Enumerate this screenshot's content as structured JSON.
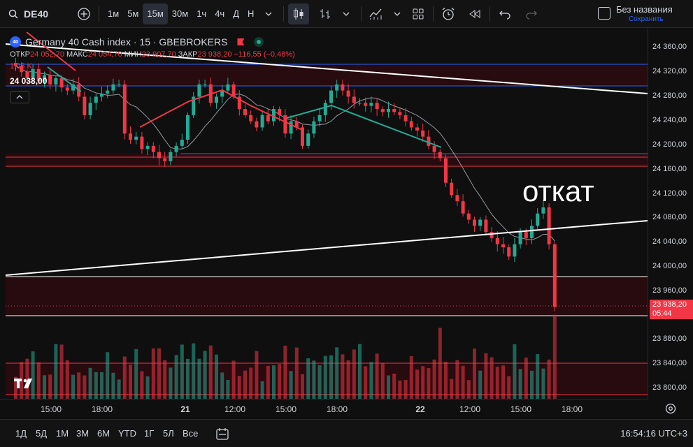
{
  "toolbar": {
    "symbol": "DE40",
    "intervals": [
      "1м",
      "5м",
      "15м",
      "30м",
      "1ч",
      "4ч",
      "Д",
      "Н"
    ],
    "active_interval": "15м",
    "chart_title": "Без названия",
    "save_label": "Сохранить"
  },
  "legend": {
    "instrument": "Germany 40 Cash index · 15 · GBEBROKERS",
    "badge": "40",
    "open_label": "ОТКР",
    "open": "24 052,70",
    "high_label": "МАКС",
    "high": "24 054,70",
    "low_label": "МИН",
    "low": "23 907,70",
    "close_label": "ЗАКР",
    "close": "23 938,20",
    "change": "−116,55 (−0,48%)",
    "volume": "1,05 K",
    "crosshair_price": "24 038,00"
  },
  "annotation": "откат",
  "price_axis": {
    "ticks": [
      "24 360,00",
      "24 320,00",
      "24 280,00",
      "24 240,00",
      "24 200,00",
      "24 160,00",
      "24 120,00",
      "24 080,00",
      "24 040,00",
      "24 000,00",
      "23 960,00",
      "23 920,00",
      "23 880,00",
      "23 840,00",
      "23 800,00"
    ],
    "last_price": "23 938,20",
    "countdown": "05:44"
  },
  "time_axis": {
    "ticks": [
      "15:00",
      "18:00",
      "21",
      "12:00",
      "15:00",
      "18:00",
      "22",
      "12:00",
      "15:00",
      "18:00"
    ]
  },
  "bottom": {
    "ranges": [
      "1Д",
      "5Д",
      "1М",
      "3М",
      "6М",
      "YTD",
      "1Г",
      "5Л",
      "Все"
    ],
    "clock": "16:54:16 UTC+3"
  },
  "colors": {
    "up": "#22ab94",
    "down": "#f23645",
    "zone": "#3a0d12",
    "blue_line": "#2962ff"
  },
  "chart_data": {
    "type": "candlestick",
    "symbol": "DE40",
    "timeframe": "15",
    "close": [
      24330,
      24320,
      24310,
      24325,
      24305,
      24315,
      24300,
      24310,
      24295,
      24290,
      24300,
      24280,
      24250,
      24270,
      24280,
      24285,
      24290,
      24300,
      24300,
      24220,
      24210,
      24215,
      24195,
      24200,
      24190,
      24180,
      24175,
      24190,
      24200,
      24210,
      24250,
      24280,
      24300,
      24300,
      24270,
      24280,
      24290,
      24300,
      24280,
      24260,
      24250,
      24240,
      24230,
      24250,
      24240,
      24260,
      24250,
      24220,
      24240,
      24230,
      24200,
      24220,
      24240,
      24250,
      24270,
      24290,
      24300,
      24290,
      24280,
      24270,
      24270,
      24265,
      24270,
      24260,
      24255,
      24260,
      24255,
      24250,
      24240,
      24230,
      24225,
      24215,
      24200,
      24190,
      24180,
      24140,
      24120,
      24110,
      24090,
      24080,
      24070,
      24080,
      24060,
      24050,
      24040,
      24035,
      24020,
      24040,
      24060,
      24050,
      24070,
      24090,
      24100,
      24040,
      23938
    ],
    "volume_peaks_noted": "volume histogram under price"
  }
}
